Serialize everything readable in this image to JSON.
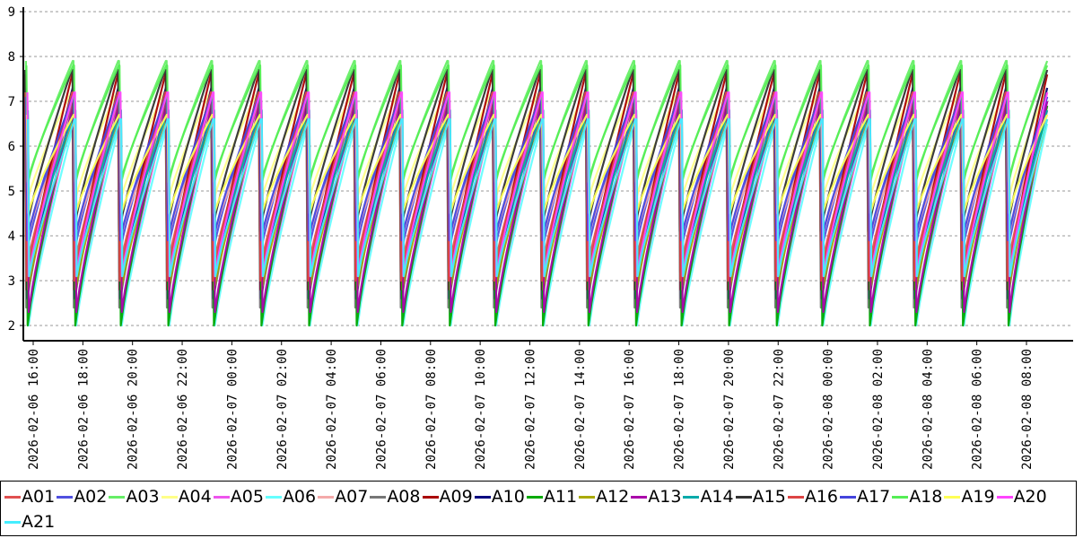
{
  "chart_data": {
    "type": "line",
    "title": "",
    "xlabel": "",
    "ylabel": "",
    "ylim": [
      2,
      9
    ],
    "yticks": [
      2,
      3,
      4,
      5,
      6,
      7,
      8,
      9
    ],
    "grid": "horizontal-dashed",
    "legend_placement": "bottom",
    "x_tick_labels": [
      "2026-02-06 16:00",
      "2026-02-06 18:00",
      "2026-02-06 20:00",
      "2026-02-06 22:00",
      "2026-02-07 00:00",
      "2026-02-07 02:00",
      "2026-02-07 04:00",
      "2026-02-07 06:00",
      "2026-02-07 08:00",
      "2026-02-07 10:00",
      "2026-02-07 12:00",
      "2026-02-07 14:00",
      "2026-02-07 16:00",
      "2026-02-07 18:00",
      "2026-02-07 20:00",
      "2026-02-07 22:00",
      "2026-02-08 00:00",
      "2026-02-08 02:00",
      "2026-02-08 04:00",
      "2026-02-08 06:00",
      "2026-02-08 08:00"
    ],
    "x_range": [
      "2026-02-06 15:30",
      "2026-02-08 09:00"
    ],
    "cycle_starts": [
      "2026-02-06 15:40",
      "2026-02-06 17:35",
      "2026-02-06 19:25",
      "2026-02-06 21:20",
      "2026-02-06 23:10",
      "2026-02-07 01:05",
      "2026-02-07 03:00",
      "2026-02-07 04:55",
      "2026-02-07 06:45",
      "2026-02-07 08:40",
      "2026-02-07 10:30",
      "2026-02-07 12:25",
      "2026-02-07 14:15",
      "2026-02-07 16:10",
      "2026-02-07 18:00",
      "2026-02-07 19:55",
      "2026-02-07 21:50",
      "2026-02-07 23:40",
      "2026-02-08 01:35",
      "2026-02-08 03:25",
      "2026-02-08 05:20",
      "2026-02-08 07:10"
    ],
    "series": [
      {
        "name": "A01",
        "color": "#e05050",
        "peak": 6.9,
        "trough": 3.2
      },
      {
        "name": "A02",
        "color": "#5050e0",
        "peak": 7.1,
        "trough": 3.6
      },
      {
        "name": "A03",
        "color": "#66ee66",
        "peak": 7.9,
        "trough": 5.1
      },
      {
        "name": "A04",
        "color": "#ffff88",
        "peak": 7.3,
        "trough": 4.8
      },
      {
        "name": "A05",
        "color": "#ee55ee",
        "peak": 6.8,
        "trough": 2.0
      },
      {
        "name": "A06",
        "color": "#66ffff",
        "peak": 6.5,
        "trough": 2.0
      },
      {
        "name": "A07",
        "color": "#f4aaaa",
        "peak": 6.7,
        "trough": 4.1
      },
      {
        "name": "A08",
        "color": "#777777",
        "peak": 7.0,
        "trough": 2.4
      },
      {
        "name": "A09",
        "color": "#aa0000",
        "peak": 7.6,
        "trough": 2.8
      },
      {
        "name": "A10",
        "color": "#000080",
        "peak": 7.3,
        "trough": 2.6
      },
      {
        "name": "A11",
        "color": "#00aa00",
        "peak": 6.9,
        "trough": 2.0
      },
      {
        "name": "A12",
        "color": "#aaaa00",
        "peak": 6.6,
        "trough": 2.8
      },
      {
        "name": "A13",
        "color": "#aa00aa",
        "peak": 7.0,
        "trough": 2.3
      },
      {
        "name": "A14",
        "color": "#00aaaa",
        "peak": 6.8,
        "trough": 3.3
      },
      {
        "name": "A15",
        "color": "#333333",
        "peak": 7.7,
        "trough": 4.1
      },
      {
        "name": "A16",
        "color": "#dd4444",
        "peak": 7.2,
        "trough": 3.0
      },
      {
        "name": "A17",
        "color": "#4444dd",
        "peak": 7.1,
        "trough": 3.9
      },
      {
        "name": "A18",
        "color": "#55ee55",
        "peak": 7.8,
        "trough": 5.2
      },
      {
        "name": "A19",
        "color": "#ffff55",
        "peak": 6.7,
        "trough": 4.5
      },
      {
        "name": "A20",
        "color": "#ff44ff",
        "peak": 7.2,
        "trough": 3.1
      },
      {
        "name": "A21",
        "color": "#44eeff",
        "peak": 6.6,
        "trough": 3.1
      }
    ]
  }
}
